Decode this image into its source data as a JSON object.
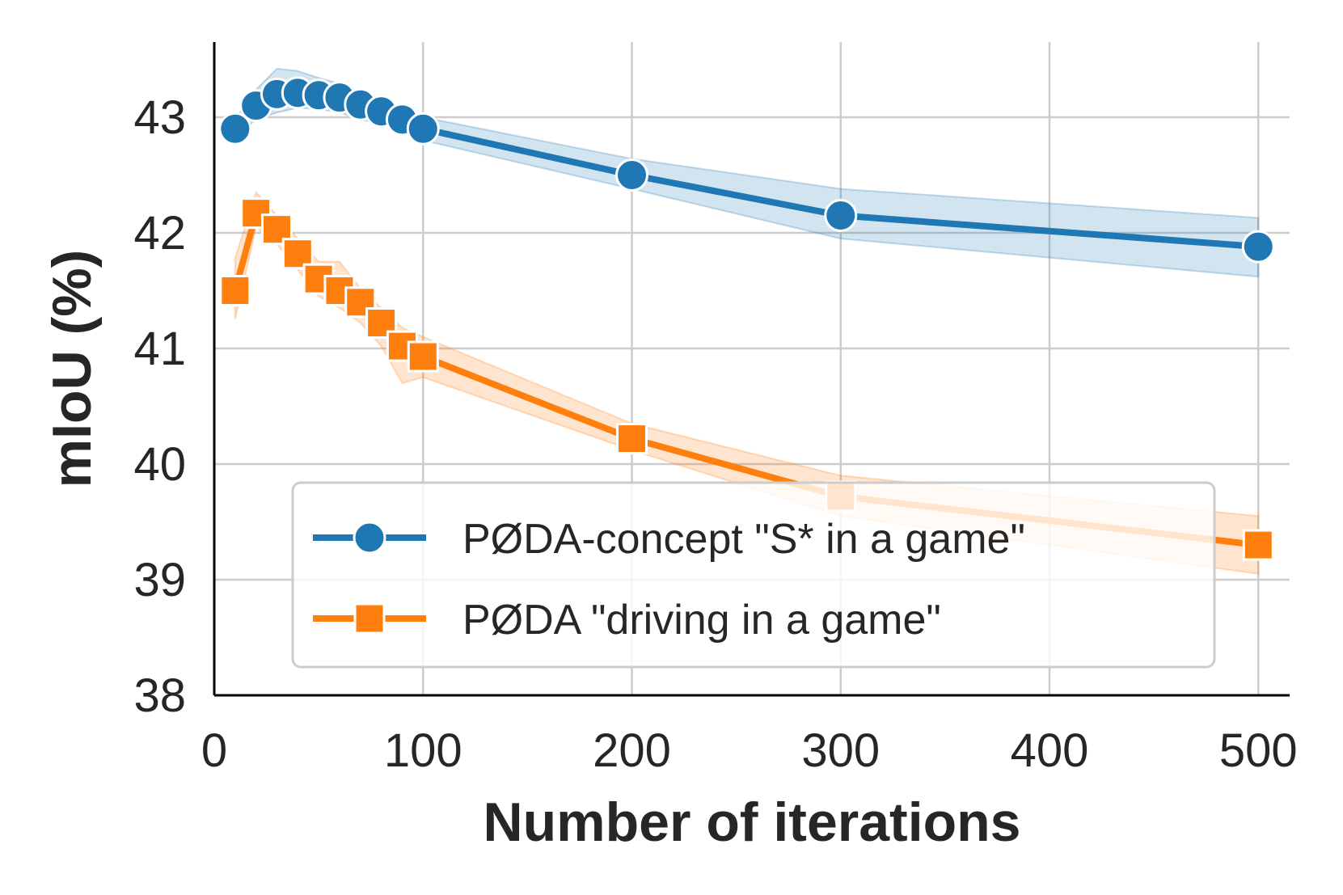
{
  "chart_data": {
    "type": "line",
    "xlabel": "Number of iterations",
    "ylabel": "mIoU (%)",
    "xlim": [
      0,
      515
    ],
    "ylim": [
      38,
      43.65
    ],
    "xticks": [
      0,
      100,
      200,
      300,
      400,
      500
    ],
    "yticks": [
      38,
      39,
      40,
      41,
      42,
      43
    ],
    "grid": true,
    "legend_position": "lower-right",
    "series": [
      {
        "name": "PØDA-concept \"S* in a game\"",
        "color": "#1f77b4",
        "marker": "circle",
        "x": [
          10,
          20,
          30,
          40,
          50,
          60,
          70,
          80,
          90,
          100,
          200,
          300,
          500
        ],
        "y": [
          42.9,
          43.1,
          43.2,
          43.21,
          43.19,
          43.17,
          43.11,
          43.05,
          42.98,
          42.9,
          42.5,
          42.15,
          41.88
        ],
        "y_lower": [
          42.82,
          42.98,
          43.04,
          43.08,
          43.07,
          43.04,
          42.98,
          42.94,
          42.88,
          42.8,
          42.38,
          41.95,
          41.62
        ],
        "y_upper": [
          42.98,
          43.24,
          43.42,
          43.4,
          43.34,
          43.29,
          43.22,
          43.16,
          43.08,
          43.0,
          42.64,
          42.38,
          42.13
        ]
      },
      {
        "name": "PØDA \"driving in a game\"",
        "color": "#ff7f0e",
        "marker": "square",
        "x": [
          10,
          20,
          30,
          40,
          50,
          60,
          70,
          80,
          90,
          100,
          200,
          300,
          500
        ],
        "y": [
          41.5,
          42.17,
          42.03,
          41.82,
          41.6,
          41.5,
          41.4,
          41.22,
          41.02,
          40.93,
          40.22,
          39.72,
          39.3
        ],
        "y_lower": [
          41.25,
          42.05,
          41.9,
          41.68,
          41.45,
          41.35,
          41.22,
          41.02,
          40.7,
          40.75,
          40.12,
          39.55,
          39.05
        ],
        "y_upper": [
          41.78,
          42.35,
          42.15,
          41.95,
          41.75,
          41.75,
          41.52,
          41.35,
          41.18,
          41.1,
          40.35,
          39.9,
          39.55
        ]
      }
    ]
  }
}
